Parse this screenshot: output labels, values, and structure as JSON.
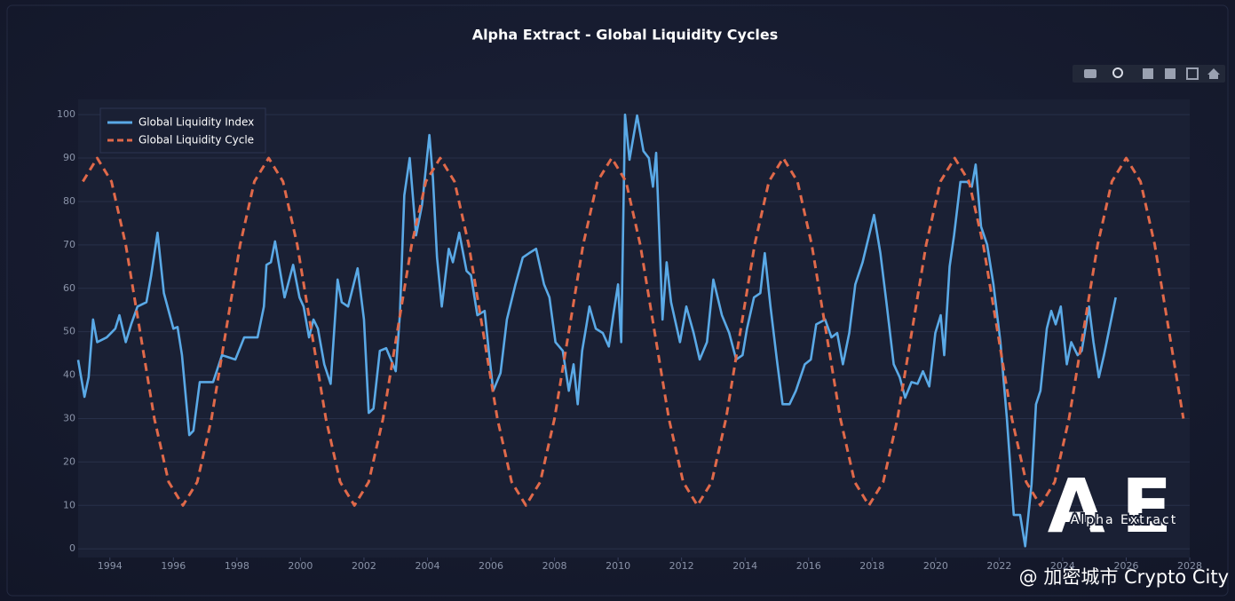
{
  "chart_data": {
    "type": "line",
    "title": "Alpha Extract - Global Liquidity Cycles",
    "xlim": [
      1993,
      2028
    ],
    "xticks": [
      1994,
      1996,
      1998,
      2000,
      2002,
      2004,
      2006,
      2008,
      2010,
      2012,
      2014,
      2016,
      2018,
      2020,
      2022,
      2024,
      2026,
      2028
    ],
    "ylim": [
      -2,
      103.5
    ],
    "yticks": [
      0,
      10,
      20,
      30,
      40,
      50,
      60,
      70,
      80,
      90,
      100
    ],
    "grid": true,
    "legend": "top-left",
    "series": [
      {
        "name": "Global Liquidity Index",
        "color": "#5aa9e6",
        "line_style": "solid",
        "x": [
          1993.0,
          1993.2,
          1993.33,
          1993.47,
          1993.6,
          1993.9,
          1994.17,
          1994.3,
          1994.5,
          1994.67,
          1994.87,
          1995.15,
          1995.3,
          1995.5,
          1995.7,
          1996.0,
          1996.13,
          1996.27,
          1996.5,
          1996.63,
          1996.83,
          1997.25,
          1997.53,
          1997.95,
          1998.23,
          1998.65,
          1998.85,
          1998.93,
          1999.07,
          1999.2,
          1999.5,
          1999.77,
          1999.97,
          2000.1,
          2000.27,
          2000.41,
          2000.55,
          2000.75,
          2000.95,
          2001.17,
          2001.3,
          2001.5,
          2001.8,
          2002.0,
          2002.15,
          2002.3,
          2002.5,
          2002.7,
          2002.85,
          2003.0,
          2003.13,
          2003.27,
          2003.44,
          2003.64,
          2003.83,
          2004.06,
          2004.17,
          2004.3,
          2004.45,
          2004.67,
          2004.8,
          2005.0,
          2005.23,
          2005.37,
          2005.57,
          2005.8,
          2005.93,
          2006.07,
          2006.3,
          2006.5,
          2006.77,
          2007.0,
          2007.2,
          2007.42,
          2007.67,
          2007.84,
          2008.03,
          2008.26,
          2008.45,
          2008.6,
          2008.73,
          2008.87,
          2009.01,
          2009.1,
          2009.3,
          2009.52,
          2009.71,
          2009.85,
          2010.0,
          2010.1,
          2010.22,
          2010.36,
          2010.6,
          2010.8,
          2010.97,
          2011.1,
          2011.2,
          2011.3,
          2011.4,
          2011.53,
          2011.67,
          2011.95,
          2012.15,
          2012.38,
          2012.57,
          2012.8,
          2013.0,
          2013.27,
          2013.5,
          2013.72,
          2013.92,
          2014.06,
          2014.28,
          2014.48,
          2014.62,
          2014.8,
          2015.0,
          2015.18,
          2015.4,
          2015.6,
          2015.88,
          2016.07,
          2016.24,
          2016.52,
          2016.72,
          2016.9,
          2017.08,
          2017.28,
          2017.47,
          2017.7,
          2018.06,
          2018.26,
          2018.45,
          2018.68,
          2018.87,
          2019.04,
          2019.24,
          2019.43,
          2019.6,
          2019.8,
          2019.99,
          2020.16,
          2020.27,
          2020.44,
          2020.58,
          2020.78,
          2021.0,
          2021.14,
          2021.26,
          2021.43,
          2021.62,
          2021.82,
          2022.04,
          2022.24,
          2022.46,
          2022.66,
          2022.82,
          2023.02,
          2023.16,
          2023.3,
          2023.5,
          2023.64,
          2023.78,
          2023.94,
          2024.13,
          2024.27,
          2024.47,
          2024.6,
          2024.83,
          2024.97,
          2025.14,
          2025.3,
          2025.47,
          2025.67
        ],
        "values": [
          43.5,
          35,
          39.5,
          52.8,
          47.6,
          48.7,
          50.7,
          53.8,
          47.6,
          51.7,
          55.8,
          56.8,
          63,
          72.8,
          58.9,
          50.7,
          51.1,
          44.6,
          26.2,
          27.2,
          38.4,
          38.4,
          44.6,
          43.6,
          48.7,
          48.7,
          55.8,
          65.4,
          66,
          70.8,
          57.9,
          65.4,
          57.9,
          55.8,
          48.7,
          52.8,
          50.7,
          42.5,
          38,
          62,
          56.8,
          55.8,
          64.6,
          52.8,
          31.3,
          32.3,
          45.6,
          46.2,
          43.6,
          40.9,
          53.8,
          81.4,
          90,
          72.2,
          79.3,
          95.3,
          85.5,
          67.1,
          55.8,
          69.1,
          66,
          72.8,
          64,
          63,
          53.8,
          54.8,
          45.6,
          36.4,
          40.5,
          52.8,
          60.9,
          67.1,
          68.1,
          69.1,
          60.9,
          57.9,
          47.6,
          45.6,
          36.4,
          42.5,
          33.3,
          45.6,
          51.7,
          55.8,
          50.7,
          49.7,
          46.6,
          53.8,
          60.9,
          47.6,
          100,
          89.6,
          99.8,
          91.6,
          90,
          83.4,
          91.2,
          72.2,
          52.8,
          66,
          56.8,
          47.6,
          55.8,
          49.7,
          43.6,
          47.6,
          62,
          53.8,
          49.7,
          43.6,
          44.6,
          50.7,
          57.9,
          58.9,
          68.1,
          55.8,
          43.6,
          33.3,
          33.3,
          36.4,
          42.5,
          43.6,
          51.7,
          52.8,
          48.7,
          49.7,
          42.5,
          49.7,
          60.9,
          66,
          76.9,
          68.1,
          56.8,
          42.5,
          39.5,
          34.8,
          38.4,
          38,
          40.9,
          37.4,
          49.7,
          53.8,
          44.6,
          65,
          72.2,
          84.5,
          84.5,
          83.4,
          88.5,
          74.2,
          70.1,
          60.9,
          47.6,
          30.3,
          7.8,
          7.8,
          0.6,
          14.9,
          33.3,
          36.4,
          50.7,
          54.8,
          51.7,
          55.8,
          42.5,
          47.6,
          44.6,
          45.6,
          55.8,
          47.6,
          39.5,
          44.6,
          50.7,
          57.9
        ]
      },
      {
        "name": "Global Liquidity Cycle",
        "color": "#e0694a",
        "line_style": "dashed",
        "x": [
          1993.15,
          1993.6,
          1994.05,
          1994.5,
          1994.95,
          1995.4,
          1995.85,
          1996.3,
          1996.75,
          1997.2,
          1997.65,
          1998.1,
          1998.55,
          1999.0,
          1999.45,
          1999.9,
          2000.35,
          2000.8,
          2001.25,
          2001.7,
          2002.15,
          2002.6,
          2003.05,
          2003.5,
          2003.95,
          2004.4,
          2004.85,
          2005.3,
          2005.75,
          2006.2,
          2006.65,
          2007.1,
          2007.55,
          2008.0,
          2008.45,
          2008.9,
          2009.35,
          2009.8,
          2010.25,
          2010.7,
          2011.15,
          2011.6,
          2012.05,
          2012.5,
          2012.95,
          2013.4,
          2013.85,
          2014.3,
          2014.75,
          2015.2,
          2015.65,
          2016.1,
          2016.55,
          2017.0,
          2017.45,
          2017.9,
          2018.35,
          2018.8,
          2019.25,
          2019.7,
          2020.15,
          2020.6,
          2021.05,
          2021.5,
          2021.95,
          2022.4,
          2022.85,
          2023.3,
          2023.75,
          2024.2,
          2024.65,
          2025.1,
          2025.55,
          2026.0,
          2026.45,
          2026.9,
          2027.35,
          2027.8
        ],
        "values": [
          84.6,
          90,
          84.6,
          70,
          50,
          30,
          15.4,
          10,
          15.4,
          30,
          50,
          70,
          84.6,
          90,
          84.6,
          70,
          50,
          30,
          15.4,
          10,
          15.4,
          30,
          50,
          70,
          84.6,
          90,
          84.6,
          70,
          50,
          30,
          15.4,
          10,
          15.4,
          30,
          50,
          70,
          84.6,
          90,
          84.6,
          70,
          50,
          30,
          15.4,
          10,
          15.4,
          30,
          50,
          70,
          84.6,
          90,
          84.6,
          70,
          50,
          30,
          15.4,
          10,
          15.4,
          30,
          50,
          70,
          84.6,
          90,
          84.6,
          70,
          50,
          30,
          15.4,
          10,
          15.4,
          30,
          50,
          70,
          84.6,
          90,
          84.6,
          70,
          50,
          30
        ]
      }
    ]
  },
  "watermark": {
    "logo": "AE",
    "brand": "Alpha Extract",
    "credit": "@ 加密城市 Crypto City"
  }
}
